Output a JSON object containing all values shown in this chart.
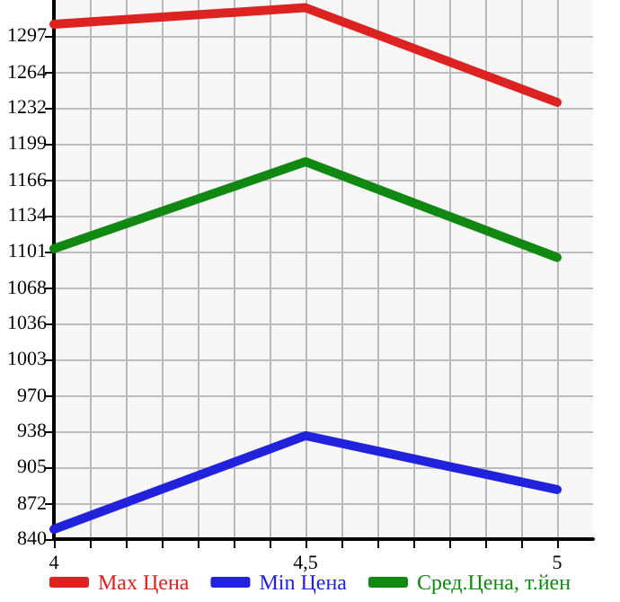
{
  "chart_data": {
    "type": "line",
    "x": [
      4,
      4.5,
      5
    ],
    "series": [
      {
        "name": "Max Цена",
        "color": "#dd2222",
        "values": [
          1308,
          1323,
          1237
        ]
      },
      {
        "name": "Min Цена",
        "color": "#2222dd",
        "values": [
          849,
          934,
          885
        ]
      },
      {
        "name": "Сред.Цена, т.йен",
        "color": "#118811",
        "values": [
          1104,
          1183,
          1096
        ]
      }
    ],
    "xlim": [
      4,
      5.0714
    ],
    "xticks": [
      4,
      {
        "value": 4.0714,
        "label": null
      },
      {
        "value": 4.1429,
        "label": null
      },
      {
        "value": 4.2143,
        "label": null
      },
      {
        "value": 4.2857,
        "label": null
      },
      {
        "value": 4.3571,
        "label": null
      },
      {
        "value": 4.4286,
        "label": null
      },
      {
        "value": 4.5,
        "label": "4,5"
      },
      {
        "value": 4.5714,
        "label": null
      },
      {
        "value": 4.6429,
        "label": null
      },
      {
        "value": 4.7143,
        "label": null
      },
      {
        "value": 4.7857,
        "label": null
      },
      {
        "value": 4.8571,
        "label": null
      },
      {
        "value": 4.9286,
        "label": null
      },
      5
    ],
    "ylim": [
      840,
      1330
    ],
    "yticks": [
      840,
      872,
      905,
      938,
      970,
      1003,
      1036,
      1068,
      1101,
      1134,
      1166,
      1199,
      1232,
      1264,
      1297
    ],
    "grid": true,
    "legend": "bottom",
    "marker": "none",
    "line_style": "solid"
  }
}
